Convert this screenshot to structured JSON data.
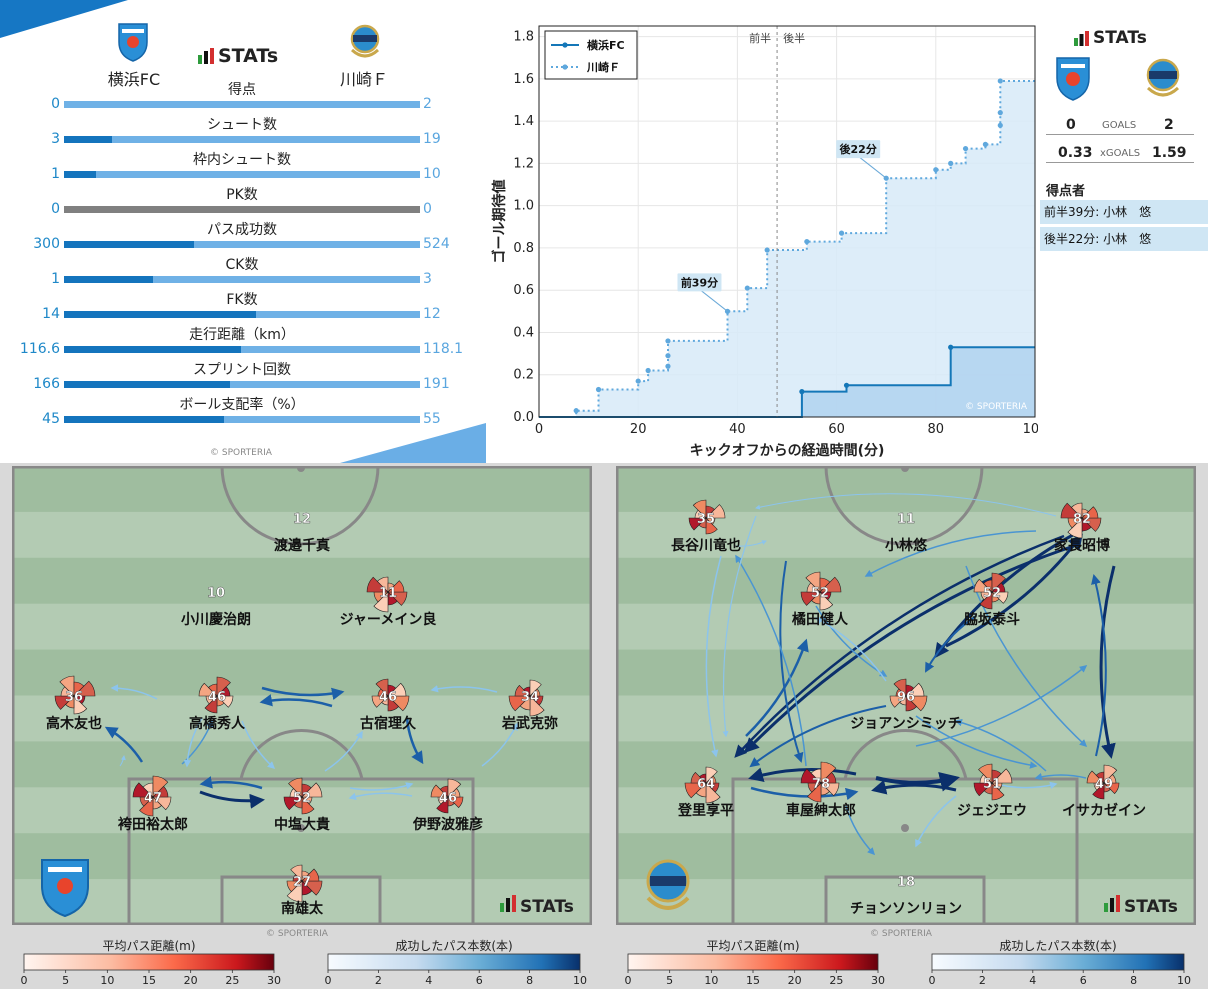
{
  "stats_panel": {
    "brand": "STATs",
    "home_team": "横浜FC",
    "away_team": "川崎Ｆ",
    "copyright": "© SPORTERIA",
    "rows": [
      {
        "label": "得点",
        "home": "0",
        "away": "2",
        "home_frac": 0.0,
        "neutral": false
      },
      {
        "label": "シュート数",
        "home": "3",
        "away": "19",
        "home_frac": 0.136,
        "neutral": false
      },
      {
        "label": "枠内シュート数",
        "home": "1",
        "away": "10",
        "home_frac": 0.091,
        "neutral": false
      },
      {
        "label": "PK数",
        "home": "0",
        "away": "0",
        "home_frac": 0.0,
        "neutral": true
      },
      {
        "label": "パス成功数",
        "home": "300",
        "away": "524",
        "home_frac": 0.364,
        "neutral": false
      },
      {
        "label": "CK数",
        "home": "1",
        "away": "3",
        "home_frac": 0.25,
        "neutral": false
      },
      {
        "label": "FK数",
        "home": "14",
        "away": "12",
        "home_frac": 0.538,
        "neutral": false
      },
      {
        "label": "走行距離（km）",
        "home": "116.6",
        "away": "118.1",
        "home_frac": 0.497,
        "neutral": false
      },
      {
        "label": "スプリント回数",
        "home": "166",
        "away": "191",
        "home_frac": 0.465,
        "neutral": false
      },
      {
        "label": "ボール支配率（%）",
        "home": "45",
        "away": "55",
        "home_frac": 0.45,
        "neutral": false
      }
    ]
  },
  "summary": {
    "brand": "STATs",
    "goals_label": "GOALS",
    "xgoals_label": "xGOALS",
    "home_goals": "0",
    "away_goals": "2",
    "home_xg": "0.33",
    "away_xg": "1.59",
    "scorers_title": "得点者",
    "scorers": [
      "前半39分: 小林　悠",
      "後半22分: 小林　悠"
    ]
  },
  "chart_data": [
    {
      "type": "line",
      "xlabel": "キックオフからの経過時間(分)",
      "ylabel": "ゴール期待値",
      "xlim": [
        0,
        100
      ],
      "ylim": [
        0,
        1.85
      ],
      "xticks": [
        "0",
        "20",
        "40",
        "60",
        "80",
        "100"
      ],
      "yticks": [
        "0.0",
        "0.2",
        "0.4",
        "0.6",
        "0.8",
        "1.0",
        "1.2",
        "1.4",
        "1.6",
        "1.8"
      ],
      "half_labels": [
        "前半",
        "後半"
      ],
      "half_line_x": 48,
      "grid": true,
      "legend": "top-left",
      "copyright": "© SPORTERIA",
      "series": [
        {
          "name": "横浜FC",
          "color": "#1477b8",
          "style": "solid",
          "x": [
            53,
            62,
            83
          ],
          "y": [
            0.12,
            0.15,
            0.33
          ]
        },
        {
          "name": "川崎Ｆ",
          "color": "#5fa8dd",
          "style": "dotted",
          "x": [
            7.5,
            12,
            20,
            22,
            26,
            26,
            26,
            38,
            42,
            46,
            54,
            61,
            70,
            80,
            83,
            86,
            90,
            93,
            93,
            93
          ],
          "y": [
            0.03,
            0.13,
            0.17,
            0.22,
            0.24,
            0.29,
            0.36,
            0.5,
            0.61,
            0.79,
            0.83,
            0.87,
            1.13,
            1.17,
            1.2,
            1.27,
            1.29,
            1.38,
            1.44,
            1.59
          ]
        }
      ],
      "annotations": [
        {
          "text": "前39分",
          "x": 38,
          "y": 0.5
        },
        {
          "text": "後22分",
          "x": 70,
          "y": 1.13
        }
      ]
    }
  ],
  "pitch_left": {
    "brand": "STATs",
    "copyright": "© SPORTERIA",
    "players": [
      {
        "num": "12",
        "name": "渡邉千真",
        "marker": false
      },
      {
        "num": "10",
        "name": "小川慶治朗",
        "marker": false
      },
      {
        "num": "11",
        "name": "ジャーメイン良",
        "marker": true
      },
      {
        "num": "36",
        "name": "高木友也",
        "marker": true
      },
      {
        "num": "46",
        "name": "高橋秀人",
        "marker": true
      },
      {
        "num": "46",
        "name": "古宿理久",
        "marker": true
      },
      {
        "num": "34",
        "name": "岩武克弥",
        "marker": true
      },
      {
        "num": "47",
        "name": "袴田裕太郎",
        "marker": true
      },
      {
        "num": "52",
        "name": "中塩大貴",
        "marker": true
      },
      {
        "num": "46",
        "name": "伊野波雅彦",
        "marker": true
      },
      {
        "num": "27",
        "name": "南雄太",
        "marker": true
      }
    ]
  },
  "pitch_right": {
    "brand": "STATs",
    "copyright": "© SPORTERIA",
    "players": [
      {
        "num": "35",
        "name": "長谷川竜也",
        "marker": true
      },
      {
        "num": "11",
        "name": "小林悠",
        "marker": false
      },
      {
        "num": "82",
        "name": "家長昭博",
        "marker": true
      },
      {
        "num": "52",
        "name": "橘田健人",
        "marker": true
      },
      {
        "num": "52",
        "name": "脇坂泰斗",
        "marker": true
      },
      {
        "num": "96",
        "name": "ジョアンシミッチ",
        "marker": true
      },
      {
        "num": "64",
        "name": "登里享平",
        "marker": true
      },
      {
        "num": "78",
        "name": "車屋紳太郎",
        "marker": true
      },
      {
        "num": "51",
        "name": "ジェジエウ",
        "marker": true
      },
      {
        "num": "49",
        "name": "イサカゼイン",
        "marker": true
      },
      {
        "num": "18",
        "name": "チョンソンリョン",
        "marker": false
      }
    ]
  },
  "colorbars": {
    "distance_title": "平均パス距離(m)",
    "distance_ticks": [
      "0",
      "5",
      "10",
      "15",
      "20",
      "25",
      "30"
    ],
    "count_title": "成功したパス本数(本)",
    "count_ticks": [
      "0",
      "2",
      "4",
      "6",
      "8",
      "10"
    ]
  }
}
